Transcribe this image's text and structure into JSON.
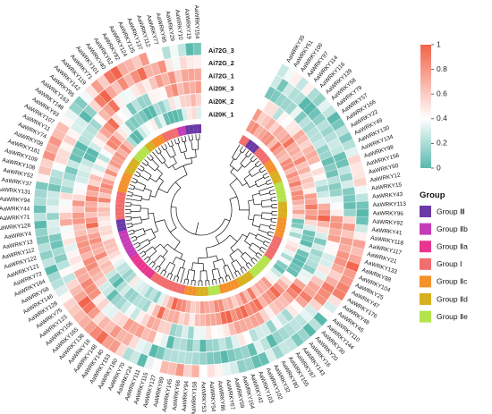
{
  "chart_data": {
    "type": "heatmap",
    "layout": "circular",
    "title": "",
    "color_scale": {
      "min": 0,
      "max": 1,
      "ticks": [
        "0",
        "0.2",
        "0.4",
        "0.6",
        "0.8",
        "1"
      ],
      "low_color": "#5ab9ad",
      "mid_color": "#ffffff",
      "high_color": "#f2634a"
    },
    "tracks": [
      "Ai72G_3",
      "Ai72G_2",
      "Ai72G_1",
      "Ai20K_3",
      "Ai20K_2",
      "Ai20K_1"
    ],
    "legend": {
      "title": "Group",
      "items": [
        {
          "label": "Group Ⅲ",
          "color": "#6a3aa6"
        },
        {
          "label": "Group Ⅱb",
          "color": "#c63cb8"
        },
        {
          "label": "Group Ⅱa",
          "color": "#e8368f"
        },
        {
          "label": "Group Ⅰ",
          "color": "#f26d6d"
        },
        {
          "label": "Group Ⅱc",
          "color": "#f5912a"
        },
        {
          "label": "Group Ⅱd",
          "color": "#d8b021"
        },
        {
          "label": "Group Ⅱe",
          "color": "#b5e34d"
        }
      ]
    },
    "leaves": [
      {
        "name": "AaWRKY35",
        "group": 3
      },
      {
        "name": "AaWRKY51",
        "group": 3
      },
      {
        "name": "AaWRKY100",
        "group": 0
      },
      {
        "name": "AaWRKY97",
        "group": 0
      },
      {
        "name": "AaWRKY114",
        "group": 0
      },
      {
        "name": "AaWRKY116",
        "group": 3
      },
      {
        "name": "AaWRKY139",
        "group": 3
      },
      {
        "name": "AaWRKY58",
        "group": 3
      },
      {
        "name": "AaWRKY79",
        "group": 3
      },
      {
        "name": "AaWRKY57",
        "group": 4
      },
      {
        "name": "AaWRKY166",
        "group": 4
      },
      {
        "name": "AaWRKY22",
        "group": 4
      },
      {
        "name": "AaWRKY49",
        "group": 5
      },
      {
        "name": "AaWRKY130",
        "group": 5
      },
      {
        "name": "AaWRKY134",
        "group": 5
      },
      {
        "name": "AaWRKY98",
        "group": 6
      },
      {
        "name": "AaWRKY156",
        "group": 6
      },
      {
        "name": "AaWRKY60",
        "group": 6
      },
      {
        "name": "AaWRKY12",
        "group": 6
      },
      {
        "name": "AaWRKY15",
        "group": 6
      },
      {
        "name": "AaWRKY43",
        "group": 5
      },
      {
        "name": "AaWRKY113",
        "group": 5
      },
      {
        "name": "AaWRKY96",
        "group": 5
      },
      {
        "name": "AaWRKY92",
        "group": 5
      },
      {
        "name": "AaWRKY41",
        "group": 4
      },
      {
        "name": "AaWRKY118",
        "group": 4
      },
      {
        "name": "AaWRKY117",
        "group": 4
      },
      {
        "name": "AaWRKY21",
        "group": 4
      },
      {
        "name": "AaWRKY133",
        "group": 4
      },
      {
        "name": "AaWRKY88",
        "group": 3
      },
      {
        "name": "AaWRKY104",
        "group": 3
      },
      {
        "name": "AaWRKY25",
        "group": 3
      },
      {
        "name": "AaWRKY47",
        "group": 3
      },
      {
        "name": "AaWRKY176",
        "group": 3
      },
      {
        "name": "AaWRKY48",
        "group": 3
      },
      {
        "name": "AaWRKY45",
        "group": 6
      },
      {
        "name": "AaWRKY110",
        "group": 6
      },
      {
        "name": "AaWRKY144",
        "group": 6
      },
      {
        "name": "AaWRKY30",
        "group": 6
      },
      {
        "name": "AaWRKY20",
        "group": 6
      },
      {
        "name": "AaWRKY16",
        "group": 6
      },
      {
        "name": "AaWRKY143",
        "group": 5
      },
      {
        "name": "AaWRKY87",
        "group": 5
      },
      {
        "name": "AaWRKY155",
        "group": 5
      },
      {
        "name": "AaWRKY80",
        "group": 5
      },
      {
        "name": "AaWRKY32",
        "group": 4
      },
      {
        "name": "AaWRKY102",
        "group": 4
      },
      {
        "name": "AaWRKY103",
        "group": 4
      },
      {
        "name": "AaWRKY42",
        "group": 4
      },
      {
        "name": "AaWRKY164",
        "group": 4
      },
      {
        "name": "AaWRKY59",
        "group": 6
      },
      {
        "name": "AaWRKY67",
        "group": 6
      },
      {
        "name": "AaWRKY86",
        "group": 6
      },
      {
        "name": "AaWRKY54",
        "group": 5
      },
      {
        "name": "AaWRKY53",
        "group": 5
      },
      {
        "name": "AaWRKY158",
        "group": 5
      },
      {
        "name": "AaWRKY94",
        "group": 4
      },
      {
        "name": "AaWRKY66",
        "group": 4
      },
      {
        "name": "AaWRKY145",
        "group": 4
      },
      {
        "name": "AaWRKY89",
        "group": 3
      },
      {
        "name": "AaWRKY127",
        "group": 3
      },
      {
        "name": "AaWRKY115",
        "group": 3
      },
      {
        "name": "AaWRKY111",
        "group": 3
      },
      {
        "name": "AaWRKY24",
        "group": 3
      },
      {
        "name": "AaWRKY70",
        "group": 3
      },
      {
        "name": "AaWRKY160",
        "group": 3
      },
      {
        "name": "AaWRKY153",
        "group": 3
      },
      {
        "name": "AaWRKY140",
        "group": 3
      },
      {
        "name": "AaWRKY148",
        "group": 2
      },
      {
        "name": "AaWRKY16",
        "group": 2
      },
      {
        "name": "AaWRKY136",
        "group": 2
      },
      {
        "name": "AaWRKY165",
        "group": 2
      },
      {
        "name": "AaWRKY106",
        "group": 2
      },
      {
        "name": "AaWRKY123",
        "group": 2
      },
      {
        "name": "AaWRKY75",
        "group": 2
      },
      {
        "name": "AaWRKY128",
        "group": 1
      },
      {
        "name": "AaWRKY146",
        "group": 1
      },
      {
        "name": "AaWRKY56",
        "group": 1
      },
      {
        "name": "AaWRKY164",
        "group": 1
      },
      {
        "name": "AaWRKY72",
        "group": 1
      },
      {
        "name": "AaWRKY121",
        "group": 1
      },
      {
        "name": "AaWRKY122",
        "group": 1
      },
      {
        "name": "AaWRKY112",
        "group": 0
      },
      {
        "name": "AaWRKY13",
        "group": 0
      },
      {
        "name": "AaWRKY4",
        "group": 0
      },
      {
        "name": "AaWRKY128",
        "group": 3
      },
      {
        "name": "AaWRKY71",
        "group": 3
      },
      {
        "name": "AaWRKY44",
        "group": 3
      },
      {
        "name": "AaWRKY94",
        "group": 3
      },
      {
        "name": "AaWRKY131",
        "group": 3
      },
      {
        "name": "AaWRKY37",
        "group": 3
      },
      {
        "name": "AaWRKY52",
        "group": 3
      },
      {
        "name": "AaWRKY108",
        "group": 4
      },
      {
        "name": "AaWRKY109",
        "group": 4
      },
      {
        "name": "AaWRKY181",
        "group": 4
      },
      {
        "name": "AaWRKY08",
        "group": 4
      },
      {
        "name": "AaWRKY74",
        "group": 4
      },
      {
        "name": "AaWRKY11",
        "group": 5
      },
      {
        "name": "AaWRKY107",
        "group": 5
      },
      {
        "name": "AaWRKY93",
        "group": 5
      },
      {
        "name": "AaWRKY148",
        "group": 5
      },
      {
        "name": "AaWRKY163",
        "group": 6
      },
      {
        "name": "AaWRKY95",
        "group": 6
      },
      {
        "name": "AaWRKY142",
        "group": 6
      },
      {
        "name": "AaWRKY119",
        "group": 6
      },
      {
        "name": "AaWRKY71",
        "group": 5
      },
      {
        "name": "AaWRKY101",
        "group": 5
      },
      {
        "name": "AaWRKY40",
        "group": 4
      },
      {
        "name": "AaWRKY62",
        "group": 4
      },
      {
        "name": "AaWRKY82",
        "group": 4
      },
      {
        "name": "AaWRKY124",
        "group": 3
      },
      {
        "name": "AaWRKY125",
        "group": 3
      },
      {
        "name": "AaWRKY137",
        "group": 3
      },
      {
        "name": "AaWRKY112",
        "group": 3
      },
      {
        "name": "AaWRKY77",
        "group": 1
      },
      {
        "name": "AaWRKY65",
        "group": 1
      },
      {
        "name": "AaWRKY29",
        "group": 0
      },
      {
        "name": "AaWRKY10",
        "group": 0
      },
      {
        "name": "AaWRKY19",
        "group": 0
      },
      {
        "name": "AaWRKY154",
        "group": 0
      }
    ],
    "values": []
  }
}
